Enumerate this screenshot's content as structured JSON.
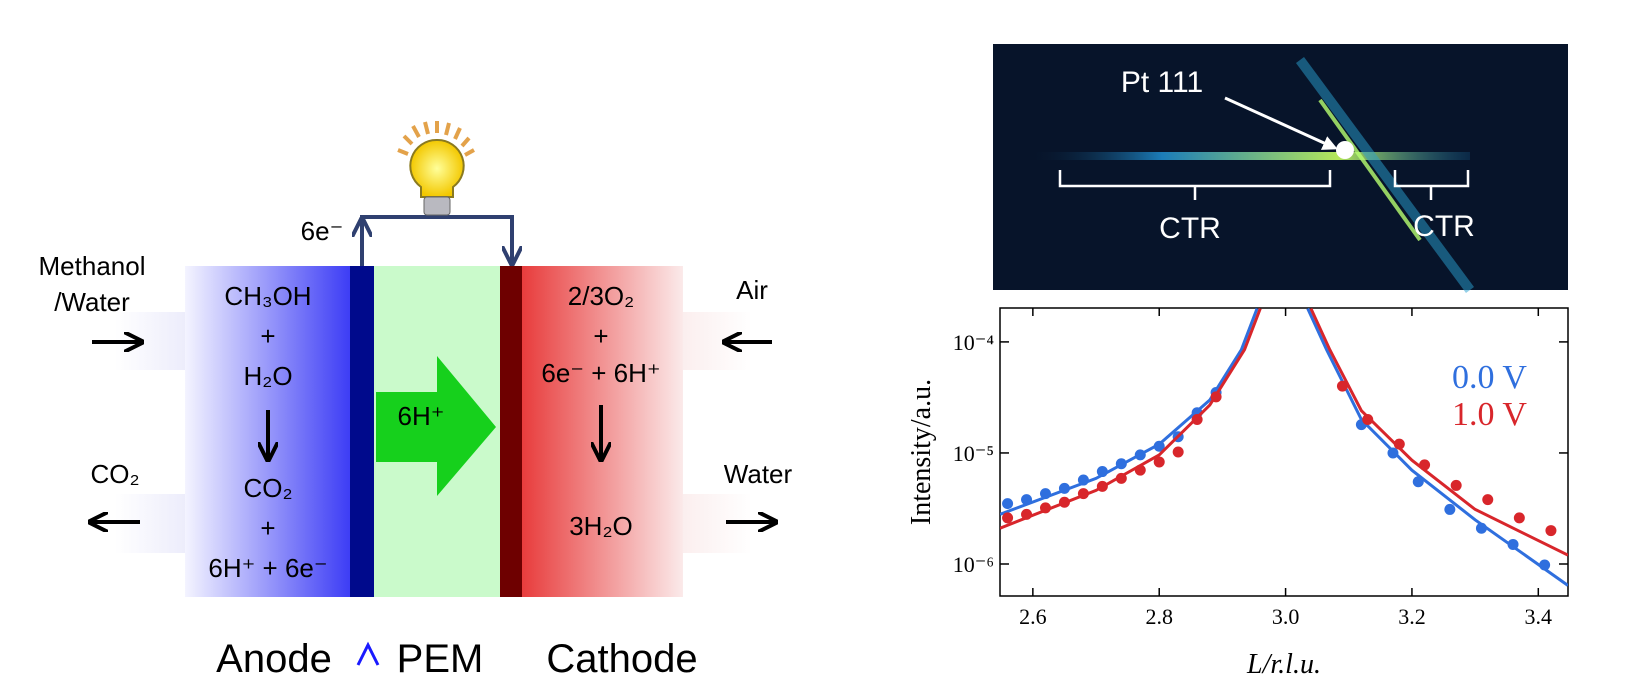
{
  "diagram": {
    "electrons": "6e⁻",
    "inlet_left": [
      "Methanol",
      "/Water"
    ],
    "outlet_left": "CO₂",
    "inlet_right": "Air",
    "outlet_right": "Water",
    "anode_reactants": [
      "CH₃OH",
      "+",
      "H₂O"
    ],
    "anode_products": [
      "CO₂",
      "+",
      "6H⁺ + 6e⁻"
    ],
    "cathode_reactants": [
      "2/3O₂",
      "+",
      "6e⁻ + 6H⁺"
    ],
    "cathode_products": "3H₂O",
    "pem_flow": "6H⁺",
    "labels": [
      "Anode",
      "PEM",
      "Cathode"
    ]
  },
  "detector_image": {
    "peak": "Pt 111",
    "rod_left": "CTR",
    "rod_right": "CTR"
  },
  "chart_data": {
    "type": "scatter",
    "ylabel": "Intensity/a.u.",
    "xlabel": "L/r.l.u.",
    "xlim": [
      2.548,
      3.447
    ],
    "ylim": [
      5.15e-07,
      0.000202
    ],
    "log_y": true,
    "xticks": [
      2.6,
      2.8,
      {
        "value": 3,
        "label": "3.0"
      },
      3.2,
      3.4
    ],
    "yticks": [
      {
        "value": 1e-06,
        "label": "10⁻⁶"
      },
      {
        "value": 1e-05,
        "label": "10⁻⁵"
      },
      {
        "value": 0.0001,
        "label": "10⁻⁴"
      }
    ],
    "series": [
      {
        "name": "0.0 V",
        "color": "#2f6fde",
        "x": [
          2.56,
          2.59,
          2.62,
          2.65,
          2.68,
          2.71,
          2.74,
          2.77,
          2.8,
          2.83,
          2.86,
          2.89,
          3.12,
          3.17,
          3.21,
          3.26,
          3.31,
          3.36,
          3.41
        ],
        "values": [
          3.5e-06,
          3.8e-06,
          4.3e-06,
          4.8e-06,
          5.7e-06,
          6.8e-06,
          8e-06,
          9.6e-06,
          1.15e-05,
          1.4e-05,
          2.3e-05,
          3.5e-05,
          1.8e-05,
          1e-05,
          5.5e-06,
          3.1e-06,
          2.1e-06,
          1.5e-06,
          9.8e-07
        ],
        "line_x": [
          2.548,
          2.7,
          2.8,
          2.88,
          2.93,
          2.955,
          null,
          3.035,
          3.065,
          3.12,
          3.2,
          3.3,
          3.447
        ],
        "line_values": [
          2.8e-06,
          5.9e-06,
          1.2e-05,
          3e-05,
          8.5e-05,
          0.0002,
          null,
          0.0002,
          8.5e-05,
          2e-05,
          7e-06,
          2.5e-06,
          6.4e-07
        ]
      },
      {
        "name": "1.0 V",
        "color": "#d8262b",
        "x": [
          2.56,
          2.59,
          2.62,
          2.65,
          2.68,
          2.71,
          2.74,
          2.77,
          2.8,
          2.83,
          2.86,
          2.89,
          3.09,
          3.13,
          3.18,
          3.22,
          3.27,
          3.32,
          3.37,
          3.42
        ],
        "values": [
          2.6e-06,
          2.8e-06,
          3.2e-06,
          3.6e-06,
          4.3e-06,
          5e-06,
          5.9e-06,
          7e-06,
          8.3e-06,
          1.02e-05,
          2e-05,
          3.2e-05,
          4e-05,
          2e-05,
          1.2e-05,
          7.8e-06,
          5.1e-06,
          3.8e-06,
          2.6e-06,
          2e-06
        ],
        "line_x": [
          2.548,
          2.7,
          2.8,
          2.88,
          2.935,
          2.96,
          null,
          3.04,
          3.07,
          3.12,
          3.2,
          3.3,
          3.447
        ],
        "line_values": [
          2.1e-06,
          4.6e-06,
          9.6e-06,
          2.7e-05,
          8.5e-05,
          0.0002,
          null,
          0.0002,
          8.5e-05,
          2.4e-05,
          8.6e-06,
          3.1e-06,
          1.2e-06
        ]
      }
    ]
  }
}
